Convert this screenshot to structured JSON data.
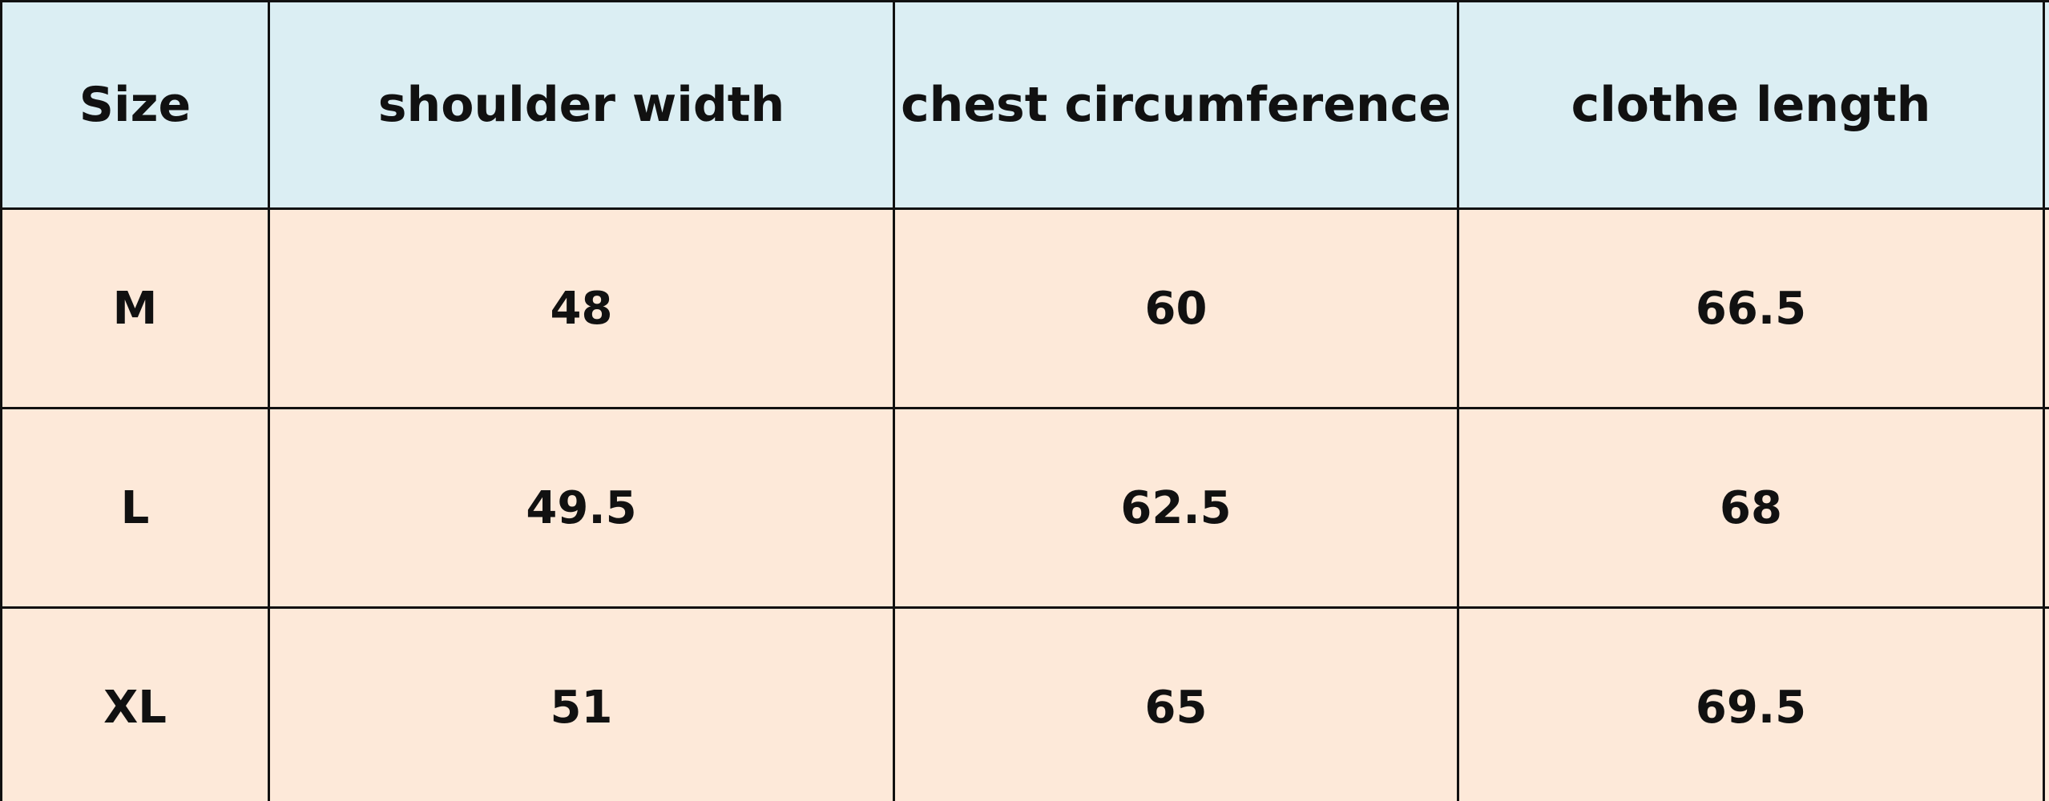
{
  "table": {
    "header": [
      "Size",
      "shoulder width",
      "chest circumference",
      "clothe length"
    ],
    "rows": [
      [
        "M",
        48,
        60,
        66.5
      ],
      [
        "L",
        49.5,
        62.5,
        68
      ],
      [
        "XL",
        51,
        65,
        69.5
      ]
    ]
  }
}
